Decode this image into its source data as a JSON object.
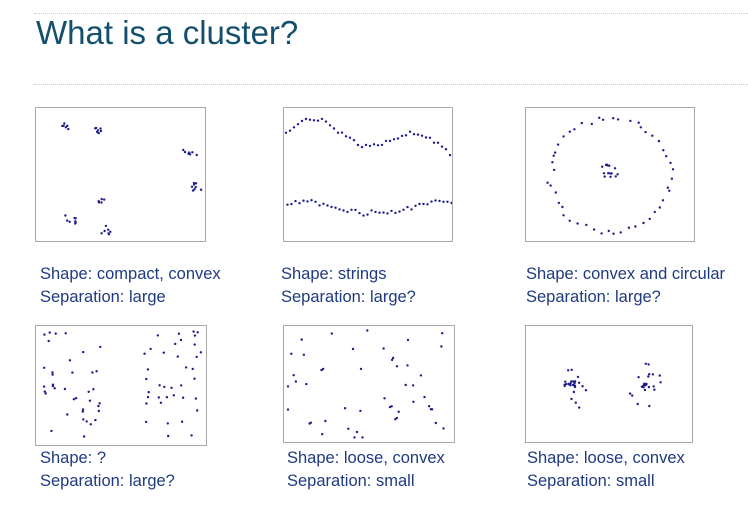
{
  "slide": {
    "title": "What is a cluster?"
  },
  "panels": [
    {
      "shape": "Shape: compact, convex",
      "separation": "Separation: large"
    },
    {
      "shape": "Shape: strings",
      "separation": "Separation: large?"
    },
    {
      "shape": "Shape: convex and circular",
      "separation": "Separation: large?"
    },
    {
      "shape": "Shape: ?",
      "separation": "Separation: large?"
    },
    {
      "shape": "Shape: loose, convex",
      "separation": "Separation: small"
    },
    {
      "shape": "Shape: loose, convex",
      "separation": "Separation: small"
    }
  ],
  "colors": {
    "title": "#14506e",
    "caption": "#1f3a80",
    "point": "#1c1c8c"
  }
}
